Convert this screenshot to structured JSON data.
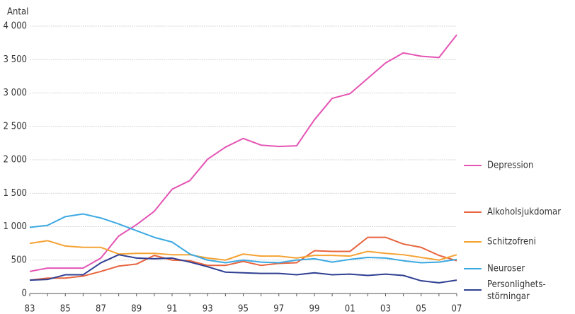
{
  "chart_data": {
    "type": "line",
    "y_label": "Antal",
    "categories": [
      "83",
      null,
      "85",
      null,
      "87",
      null,
      "89",
      null,
      "91",
      null,
      "93",
      null,
      "95",
      null,
      "97",
      null,
      "99",
      null,
      "01",
      null,
      "03",
      null,
      "05",
      null,
      "07"
    ],
    "ylim": [
      0,
      4000
    ],
    "yticks": [
      0,
      500,
      {
        "value": 1000,
        "label": "1 000"
      },
      {
        "value": 1500,
        "label": "1 500"
      },
      {
        "value": 2000,
        "label": "2 000"
      },
      {
        "value": 2500,
        "label": "2 500"
      },
      {
        "value": 3000,
        "label": "3 000"
      },
      {
        "value": 3500,
        "label": "3 500"
      },
      {
        "value": 4000,
        "label": "4 000"
      }
    ],
    "grid": true,
    "legend": "right",
    "series": [
      {
        "name": "Depression",
        "color": "#e454b4",
        "values": [
          330,
          380,
          380,
          380,
          530,
          860,
          1030,
          1230,
          1560,
          1690,
          2010,
          2190,
          2320,
          2220,
          2200,
          2210,
          2600,
          2920,
          2990,
          3220,
          3450,
          3600,
          3550,
          3530,
          3870
        ]
      },
      {
        "name": "Alkoholsjukdomar",
        "color": "#e8643e",
        "values": [
          200,
          230,
          230,
          260,
          330,
          410,
          440,
          570,
          500,
          490,
          420,
          420,
          480,
          420,
          450,
          460,
          640,
          630,
          630,
          840,
          840,
          740,
          690,
          570,
          490
        ]
      },
      {
        "name": "Schitzofreni",
        "color": "#f5a233",
        "values": [
          750,
          790,
          710,
          690,
          690,
          590,
          600,
          600,
          580,
          580,
          530,
          500,
          590,
          560,
          560,
          530,
          570,
          570,
          560,
          630,
          600,
          580,
          540,
          500,
          580
        ]
      },
      {
        "name": "Neuroser",
        "color": "#3ca9e2",
        "values": [
          990,
          1020,
          1150,
          1190,
          1130,
          1040,
          940,
          840,
          770,
          590,
          500,
          460,
          500,
          470,
          460,
          500,
          520,
          470,
          510,
          540,
          530,
          490,
          460,
          470,
          510
        ]
      },
      {
        "name": "Personlighets-\nstörningar",
        "color": "#2f3f92",
        "values": [
          200,
          210,
          280,
          280,
          460,
          580,
          530,
          520,
          530,
          470,
          400,
          320,
          310,
          300,
          300,
          280,
          310,
          280,
          290,
          270,
          290,
          270,
          190,
          160,
          200
        ]
      }
    ]
  }
}
